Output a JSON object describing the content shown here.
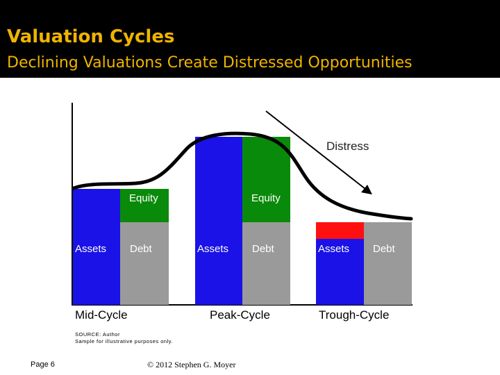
{
  "slide": {
    "title": "Valuation Cycles",
    "subtitle": "Declining Valuations Create Distressed Opportunities",
    "page": "Page 6",
    "copyright": "© 2012 Stephen G. Moyer"
  },
  "diagram": {
    "source_line": "SOURCE: Author",
    "note_line": "Sample for illustrative purposes only.",
    "distress_label": "Distress",
    "cycles": [
      {
        "name": "Mid-Cycle",
        "assets_label": "Assets",
        "equity_label": "Equity",
        "debt_label": "Debt"
      },
      {
        "name": "Peak-Cycle",
        "assets_label": "Assets",
        "equity_label": "Equity",
        "debt_label": "Debt"
      },
      {
        "name": "Trough-Cycle",
        "assets_label": "Assets",
        "debt_label": "Debt"
      }
    ],
    "colors": {
      "assets": "#1a12e6",
      "equity": "#0a8a0a",
      "debt": "#9a9a9a",
      "deficit": "#ff1010"
    }
  }
}
